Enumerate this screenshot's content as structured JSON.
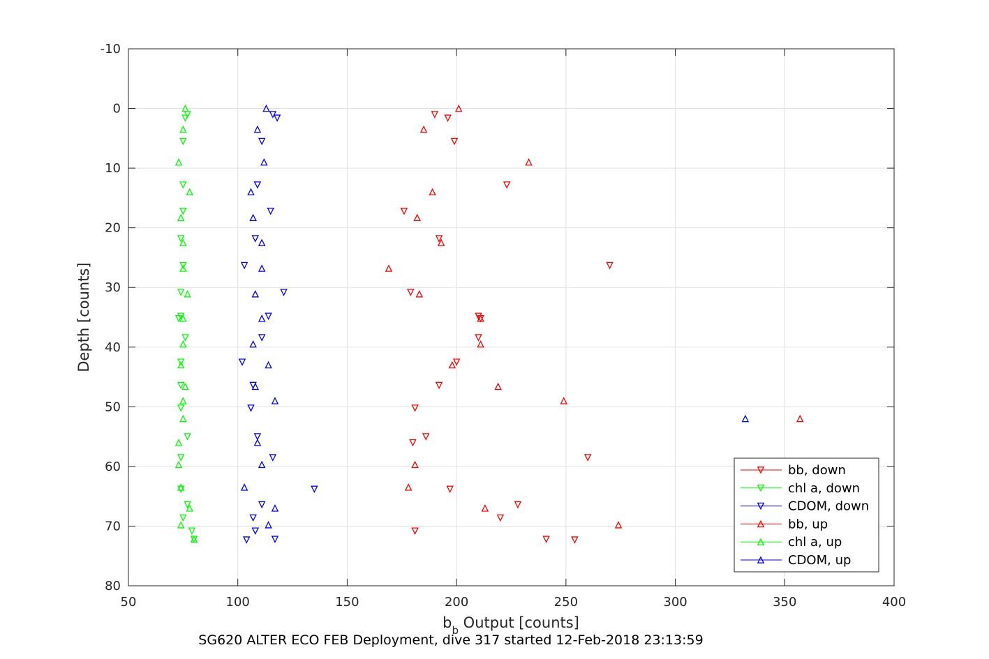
{
  "chart_data": {
    "type": "scatter",
    "title": "",
    "caption": "SG620 ALTER ECO FEB Deployment, dive 317 started 12-Feb-2018 23:13:59",
    "xlabel": {
      "main": "b",
      "sub": "b",
      "rest": " Output [counts]"
    },
    "ylabel": "Depth [counts]",
    "xlim": [
      50,
      400
    ],
    "ylim": [
      -10,
      80
    ],
    "y_reversed": true,
    "grid": true,
    "x_ticks": [
      "50",
      "100",
      "150",
      "200",
      "250",
      "300",
      "350",
      "400"
    ],
    "y_ticks": [
      "-10",
      "0",
      "10",
      "20",
      "30",
      "40",
      "50",
      "60",
      "70",
      "80"
    ],
    "legend_position": "bottom-right",
    "series": [
      {
        "name": "bb, down",
        "color": "#ff0000",
        "marker": "triangle-down",
        "points": [
          [
            190,
            1
          ],
          [
            196,
            1.6
          ],
          [
            199,
            5.5
          ],
          [
            223,
            12.8
          ],
          [
            176,
            17.2
          ],
          [
            192,
            21.8
          ],
          [
            270,
            26.3
          ],
          [
            179,
            30.8
          ],
          [
            210,
            34.8
          ],
          [
            211,
            35.2
          ],
          [
            210,
            38.4
          ],
          [
            200,
            42.5
          ],
          [
            192,
            46.4
          ],
          [
            181,
            50.2
          ],
          [
            186,
            55
          ],
          [
            180,
            56
          ],
          [
            260,
            58.5
          ],
          [
            197,
            63.8
          ],
          [
            228,
            66.4
          ],
          [
            220,
            68.6
          ],
          [
            181,
            70.8
          ],
          [
            241,
            72.2
          ],
          [
            254,
            72.3
          ]
        ]
      },
      {
        "name": "chl a, down",
        "color": "#00ff00",
        "marker": "triangle-down",
        "points": [
          [
            77,
            1
          ],
          [
            76,
            1.6
          ],
          [
            75,
            5.5
          ],
          [
            75,
            12.8
          ],
          [
            75,
            17.2
          ],
          [
            74,
            21.8
          ],
          [
            75,
            26.3
          ],
          [
            74,
            30.8
          ],
          [
            74,
            34.8
          ],
          [
            73,
            35.2
          ],
          [
            76,
            38.4
          ],
          [
            74,
            42.5
          ],
          [
            74,
            46.4
          ],
          [
            74,
            50.2
          ],
          [
            77,
            55
          ],
          [
            74,
            58.5
          ],
          [
            74,
            63.8
          ],
          [
            77,
            66.4
          ],
          [
            75,
            68.6
          ],
          [
            79,
            70.8
          ],
          [
            80,
            72.2
          ]
        ]
      },
      {
        "name": "CDOM, down",
        "color": "#0000ff",
        "marker": "triangle-down",
        "points": [
          [
            116,
            1
          ],
          [
            118,
            1.6
          ],
          [
            111,
            5.5
          ],
          [
            109,
            12.8
          ],
          [
            115,
            17.2
          ],
          [
            108,
            21.8
          ],
          [
            103,
            26.3
          ],
          [
            121,
            30.8
          ],
          [
            114,
            34.8
          ],
          [
            111,
            38.4
          ],
          [
            102,
            42.5
          ],
          [
            107,
            46.4
          ],
          [
            106,
            50.2
          ],
          [
            109,
            55
          ],
          [
            116,
            58.5
          ],
          [
            135,
            63.8
          ],
          [
            111,
            66.4
          ],
          [
            107,
            68.6
          ],
          [
            108,
            70.8
          ],
          [
            117,
            72.2
          ],
          [
            104,
            72.3
          ]
        ]
      },
      {
        "name": "bb, up",
        "color": "#ff0000",
        "marker": "triangle-up",
        "points": [
          [
            201,
            0
          ],
          [
            185,
            3.5
          ],
          [
            233,
            9
          ],
          [
            189,
            14
          ],
          [
            182,
            18.3
          ],
          [
            193,
            22.5
          ],
          [
            169,
            26.8
          ],
          [
            183,
            31.1
          ],
          [
            211,
            35.2
          ],
          [
            211,
            39.5
          ],
          [
            198,
            43
          ],
          [
            219,
            46.6
          ],
          [
            249,
            49
          ],
          [
            357,
            52
          ],
          [
            181,
            59.7
          ],
          [
            178,
            63.5
          ],
          [
            213,
            67
          ],
          [
            274,
            69.8
          ]
        ]
      },
      {
        "name": "chl a, up",
        "color": "#00ff00",
        "marker": "triangle-up",
        "points": [
          [
            76,
            0
          ],
          [
            75,
            3.5
          ],
          [
            73,
            9
          ],
          [
            78,
            14
          ],
          [
            74,
            18.3
          ],
          [
            75,
            22.5
          ],
          [
            75,
            26.8
          ],
          [
            77,
            31.1
          ],
          [
            75,
            35.2
          ],
          [
            75,
            39.5
          ],
          [
            74,
            43
          ],
          [
            76,
            46.6
          ],
          [
            75,
            49
          ],
          [
            75,
            52
          ],
          [
            73,
            56
          ],
          [
            73,
            59.7
          ],
          [
            74,
            63.5
          ],
          [
            78,
            67
          ],
          [
            74,
            69.8
          ],
          [
            80,
            72.2
          ]
        ]
      },
      {
        "name": "CDOM, up",
        "color": "#0000ff",
        "marker": "triangle-up",
        "points": [
          [
            113,
            0
          ],
          [
            109,
            3.5
          ],
          [
            112,
            9
          ],
          [
            106,
            14
          ],
          [
            107,
            18.3
          ],
          [
            111,
            22.5
          ],
          [
            111,
            26.8
          ],
          [
            108,
            31.1
          ],
          [
            111,
            35.2
          ],
          [
            107,
            39.5
          ],
          [
            114,
            43
          ],
          [
            108,
            46.6
          ],
          [
            117,
            49
          ],
          [
            332,
            52
          ],
          [
            109,
            56
          ],
          [
            111,
            59.7
          ],
          [
            103,
            63.5
          ],
          [
            117,
            67
          ],
          [
            114,
            69.8
          ]
        ]
      }
    ]
  }
}
